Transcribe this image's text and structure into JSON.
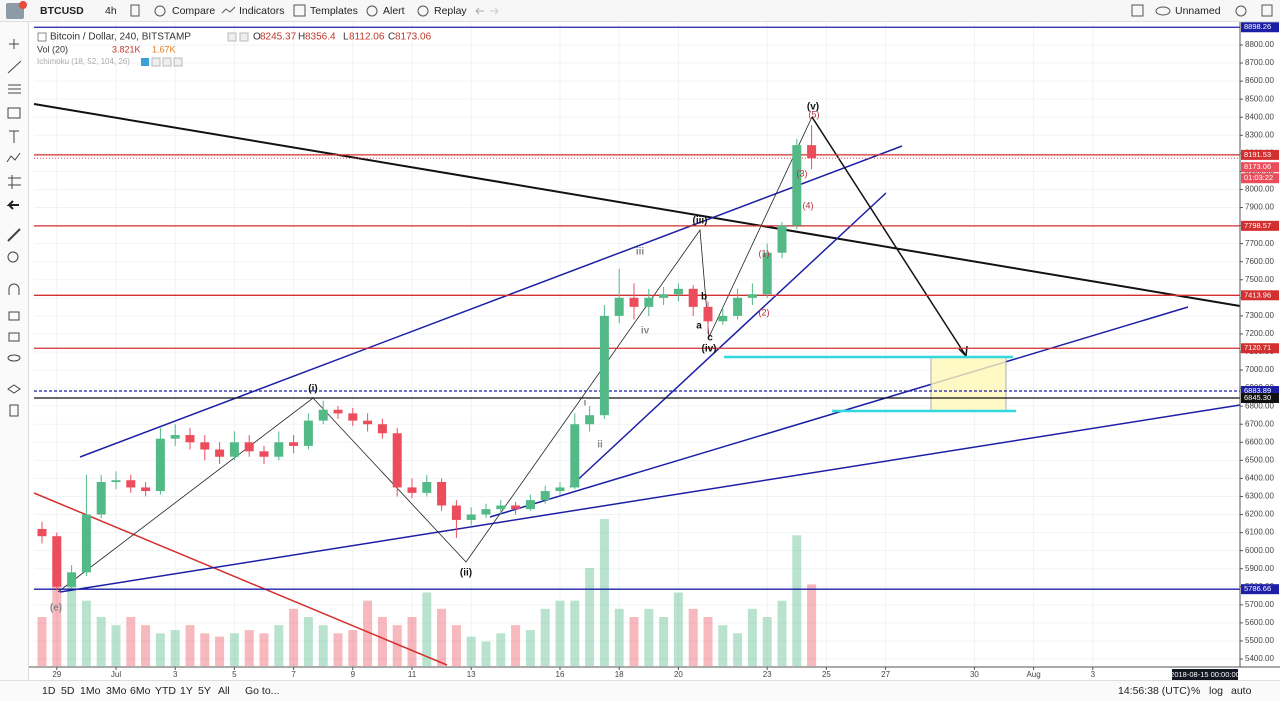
{
  "toolbar": {
    "symbol": "BTCUSD",
    "interval": "4h",
    "items": [
      "Compare",
      "Indicators",
      "Templates",
      "Alert",
      "Replay"
    ],
    "layout": "Unnamed"
  },
  "legend": {
    "title": "Bitcoin / Dollar, 240, BITSTAMP",
    "keys": [
      "O",
      "H",
      "L",
      "C"
    ],
    "volume_name": "Vol (20)",
    "volume_values": [
      "3.821K",
      "1.67K"
    ],
    "ichimoku": "Ichimoku (18, 52, 104, 26)"
  },
  "chart_data": {
    "type": "candlestick",
    "x": [
      "2018-06-28 12:00",
      "2018-06-29 00:00",
      "2018-06-29 12:00",
      "2018-06-30 00:00",
      "2018-06-30 12:00",
      "2018-07-01 00:00",
      "2018-07-01 12:00",
      "2018-07-02 00:00",
      "2018-07-02 12:00",
      "2018-07-03 00:00",
      "2018-07-03 12:00",
      "2018-07-04 00:00",
      "2018-07-04 12:00",
      "2018-07-05 00:00",
      "2018-07-05 12:00",
      "2018-07-06 00:00",
      "2018-07-06 12:00",
      "2018-07-07 00:00",
      "2018-07-07 12:00",
      "2018-07-08 00:00",
      "2018-07-08 12:00",
      "2018-07-09 00:00",
      "2018-07-09 12:00",
      "2018-07-10 00:00",
      "2018-07-10 12:00",
      "2018-07-11 00:00",
      "2018-07-11 12:00",
      "2018-07-12 00:00",
      "2018-07-12 12:00",
      "2018-07-13 00:00",
      "2018-07-13 12:00",
      "2018-07-14 00:00",
      "2018-07-14 12:00",
      "2018-07-15 00:00",
      "2018-07-15 12:00",
      "2018-07-16 00:00",
      "2018-07-16 12:00",
      "2018-07-17 00:00",
      "2018-07-17 12:00",
      "2018-07-18 00:00",
      "2018-07-18 12:00",
      "2018-07-19 00:00",
      "2018-07-19 12:00",
      "2018-07-20 00:00",
      "2018-07-20 12:00",
      "2018-07-21 00:00",
      "2018-07-21 12:00",
      "2018-07-22 00:00",
      "2018-07-22 12:00",
      "2018-07-23 00:00",
      "2018-07-23 12:00",
      "2018-07-24 00:00",
      "2018-07-24 12:00"
    ],
    "open": [
      6120,
      6080,
      5800,
      5880,
      6200,
      6380,
      6390,
      6350,
      6330,
      6620,
      6640,
      6600,
      6560,
      6520,
      6600,
      6550,
      6520,
      6600,
      6580,
      6720,
      6780,
      6760,
      6720,
      6700,
      6650,
      6350,
      6320,
      6380,
      6250,
      6170,
      6200,
      6230,
      6250,
      6230,
      6280,
      6330,
      6350,
      6700,
      6750,
      7300,
      7400,
      7350,
      7400,
      7420,
      7450,
      7350,
      7270,
      7300,
      7400,
      7420,
      7650,
      7800,
      8245.37
    ],
    "high": [
      6160,
      6100,
      5920,
      6420,
      6420,
      6440,
      6420,
      6380,
      6680,
      6700,
      6680,
      6640,
      6600,
      6660,
      6640,
      6580,
      6660,
      6640,
      6760,
      6830,
      6800,
      6790,
      6760,
      6730,
      6680,
      6400,
      6420,
      6400,
      6280,
      6240,
      6260,
      6280,
      6270,
      6310,
      6360,
      6380,
      6760,
      6800,
      7360,
      7560,
      7480,
      7450,
      7460,
      7480,
      7470,
      7380,
      7340,
      7450,
      7480,
      7700,
      7820,
      8280,
      8356.4
    ],
    "low": [
      6040,
      5780,
      5790,
      5860,
      6180,
      6340,
      6320,
      6300,
      6310,
      6580,
      6560,
      6500,
      6480,
      6500,
      6520,
      6480,
      6500,
      6540,
      6560,
      6700,
      6730,
      6690,
      6660,
      6620,
      6300,
      6290,
      6300,
      6220,
      6070,
      6140,
      6180,
      6200,
      6200,
      6220,
      6260,
      6310,
      6340,
      6660,
      6730,
      7260,
      7280,
      7300,
      7360,
      7380,
      7300,
      7200,
      7250,
      7280,
      7360,
      7400,
      7620,
      7780,
      8112.06
    ],
    "close": [
      6080,
      5800,
      5880,
      6200,
      6380,
      6390,
      6350,
      6330,
      6620,
      6640,
      6600,
      6560,
      6520,
      6600,
      6550,
      6520,
      6600,
      6580,
      6720,
      6780,
      6760,
      6720,
      6700,
      6650,
      6350,
      6320,
      6380,
      6250,
      6170,
      6200,
      6230,
      6250,
      6230,
      6280,
      6330,
      6350,
      6700,
      6750,
      7300,
      7400,
      7350,
      7400,
      7420,
      7450,
      7350,
      7270,
      7300,
      7400,
      7420,
      7650,
      7800,
      8245.37,
      8173.06
    ],
    "volume": [
      3000,
      7000,
      5000,
      4000,
      3000,
      2500,
      3000,
      2500,
      2000,
      2200,
      2500,
      2000,
      1800,
      2000,
      2200,
      2000,
      2500,
      3500,
      3000,
      2500,
      2000,
      2200,
      4000,
      3000,
      2500,
      3000,
      4500,
      3500,
      2500,
      1800,
      1500,
      2000,
      2500,
      2200,
      3500,
      4000,
      4000,
      6000,
      9000,
      3500,
      3000,
      3500,
      3000,
      4500,
      3500,
      3000,
      2500,
      2000,
      3500,
      3000,
      4000,
      8000,
      5000
    ],
    "vlim": [
      0,
      12000
    ],
    "up_color": "#53b987",
    "down_color": "#eb4d5c",
    "ylim": [
      5400,
      8800
    ],
    "yticks": [
      {
        "value": 5400,
        "label": "5400.00"
      },
      {
        "value": 5500,
        "label": "5500.00"
      },
      {
        "value": 5600,
        "label": "5600.00"
      },
      {
        "value": 5700,
        "label": "5700.00"
      },
      {
        "value": 5800,
        "label": "5800.00"
      },
      {
        "value": 5900,
        "label": "5900.00"
      },
      {
        "value": 6000,
        "label": "6000.00"
      },
      {
        "value": 6100,
        "label": "6100.00"
      },
      {
        "value": 6200,
        "label": "6200.00"
      },
      {
        "value": 6300,
        "label": "6300.00"
      },
      {
        "value": 6400,
        "label": "6400.00"
      },
      {
        "value": 6500,
        "label": "6500.00"
      },
      {
        "value": 6600,
        "label": "6600.00"
      },
      {
        "value": 6700,
        "label": "6700.00"
      },
      {
        "value": 6800,
        "label": "6800.00"
      },
      {
        "value": 6900,
        "label": "6900.00"
      },
      {
        "value": 7000,
        "label": "7000.00"
      },
      {
        "value": 7100,
        "label": "7100.00"
      },
      {
        "value": 7200,
        "label": "7200.00"
      },
      {
        "value": 7300,
        "label": "7300.00"
      },
      {
        "value": 7400,
        "label": "7400.00"
      },
      {
        "value": 7500,
        "label": "7500.00"
      },
      {
        "value": 7600,
        "label": "7600.00"
      },
      {
        "value": 7700,
        "label": "7700.00"
      },
      {
        "value": 7800,
        "label": "7800.00"
      },
      {
        "value": 7900,
        "label": "7900.00"
      },
      {
        "value": 8000,
        "label": "8000.00"
      },
      {
        "value": 8100,
        "label": "8100.00"
      },
      {
        "value": 8200,
        "label": "8200.00"
      },
      {
        "value": 8300,
        "label": "8300.00"
      },
      {
        "value": 8400,
        "label": "8400.00"
      },
      {
        "value": 8500,
        "label": "8500.00"
      },
      {
        "value": 8600,
        "label": "8600.00"
      },
      {
        "value": 8700,
        "label": "8700.00"
      },
      {
        "value": 8800,
        "label": "8800.00"
      }
    ],
    "xticks": [
      {
        "value": "2018-06-29",
        "label": "29"
      },
      {
        "value": "2018-07-01",
        "label": "Jul"
      },
      {
        "value": "2018-07-03",
        "label": "3"
      },
      {
        "value": "2018-07-05",
        "label": "5"
      },
      {
        "value": "2018-07-07",
        "label": "7"
      },
      {
        "value": "2018-07-09",
        "label": "9"
      },
      {
        "value": "2018-07-11",
        "label": "11"
      },
      {
        "value": "2018-07-13",
        "label": "13"
      },
      {
        "value": "2018-07-16",
        "label": "16"
      },
      {
        "value": "2018-07-18",
        "label": "18"
      },
      {
        "value": "2018-07-20",
        "label": "20"
      },
      {
        "value": "2018-07-23",
        "label": "23"
      },
      {
        "value": "2018-07-25",
        "label": "25"
      },
      {
        "value": "2018-07-27",
        "label": "27"
      },
      {
        "value": "2018-07-30",
        "label": "30"
      },
      {
        "value": "2018-08-01",
        "label": "Aug"
      },
      {
        "value": "2018-08-03",
        "label": "3"
      }
    ],
    "grid": true,
    "levels": [
      {
        "value": 8898.26,
        "color": "#1c1fa6"
      },
      {
        "value": 8191.53,
        "color": "#d32f2f"
      },
      {
        "value": 7798.57,
        "color": "#d32f2f"
      },
      {
        "value": 7413.96,
        "color": "#d32f2f"
      },
      {
        "value": 7120.71,
        "color": "#d32f2f"
      },
      {
        "value": 6883.89,
        "color": "#1c1fa6",
        "dashed": true
      },
      {
        "value": 6845.3,
        "label": "6845.30",
        "color": "#111111"
      },
      {
        "value": 5786.66,
        "color": "#1c1fa6"
      }
    ],
    "countdown": "01:03:22",
    "crosshair_date": "2018-08-15 00:00:00"
  },
  "annotations": [
    "(i)",
    "(ii)",
    "(iii)",
    "(iv)",
    "(v)",
    "(e)",
    "iii",
    "iv",
    "ii",
    "i",
    "a",
    "b",
    "c",
    "(1)",
    "(2)",
    "(3)",
    "(4)",
    "(5)"
  ],
  "bottom_bar": {
    "ranges": [
      "1D",
      "5D",
      "1Mo",
      "3Mo",
      "6Mo",
      "YTD",
      "1Y",
      "5Y",
      "All"
    ],
    "goto": "Go to...",
    "clock": "14:56:38 (UTC)",
    "options": [
      "%",
      "log",
      "auto"
    ]
  }
}
